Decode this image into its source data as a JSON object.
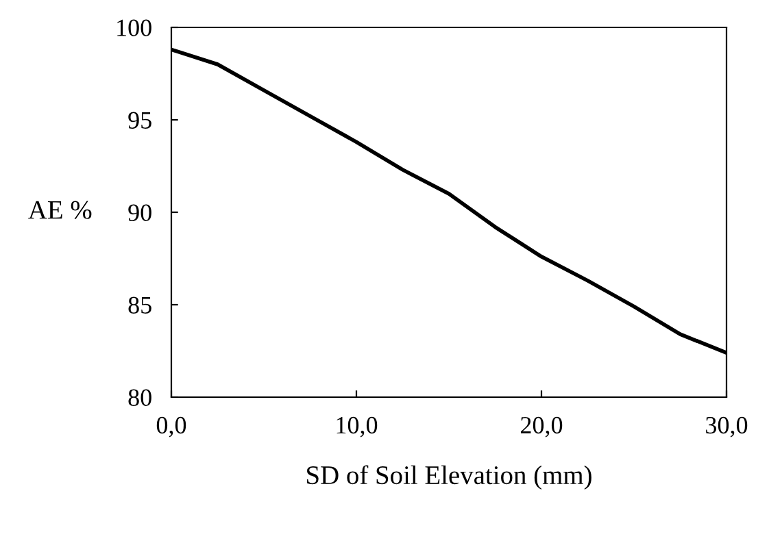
{
  "chart_data": {
    "type": "line",
    "xlabel": "SD of Soil Elevation (mm)",
    "ylabel": "AE %",
    "x": [
      0,
      2.5,
      5,
      7.5,
      10,
      12.5,
      15,
      17.5,
      20,
      22.5,
      25,
      27.5,
      30
    ],
    "series": [
      {
        "color": "#000000",
        "values": [
          98.8,
          98.0,
          96.6,
          95.2,
          93.8,
          92.3,
          91.0,
          89.2,
          87.6,
          86.3,
          84.9,
          83.4,
          82.4
        ]
      }
    ],
    "xlim": [
      0,
      30
    ],
    "ylim": [
      80,
      100
    ],
    "xticks": [
      {
        "value": 0,
        "label": "0,0"
      },
      {
        "value": 10,
        "label": "10,0"
      },
      {
        "value": 20,
        "label": "20,0"
      },
      {
        "value": 30,
        "label": "30,0"
      }
    ],
    "yticks": [
      80,
      85,
      90,
      95,
      100
    ],
    "grid": false,
    "legend": false,
    "marker": "none",
    "line_style": "solid"
  }
}
